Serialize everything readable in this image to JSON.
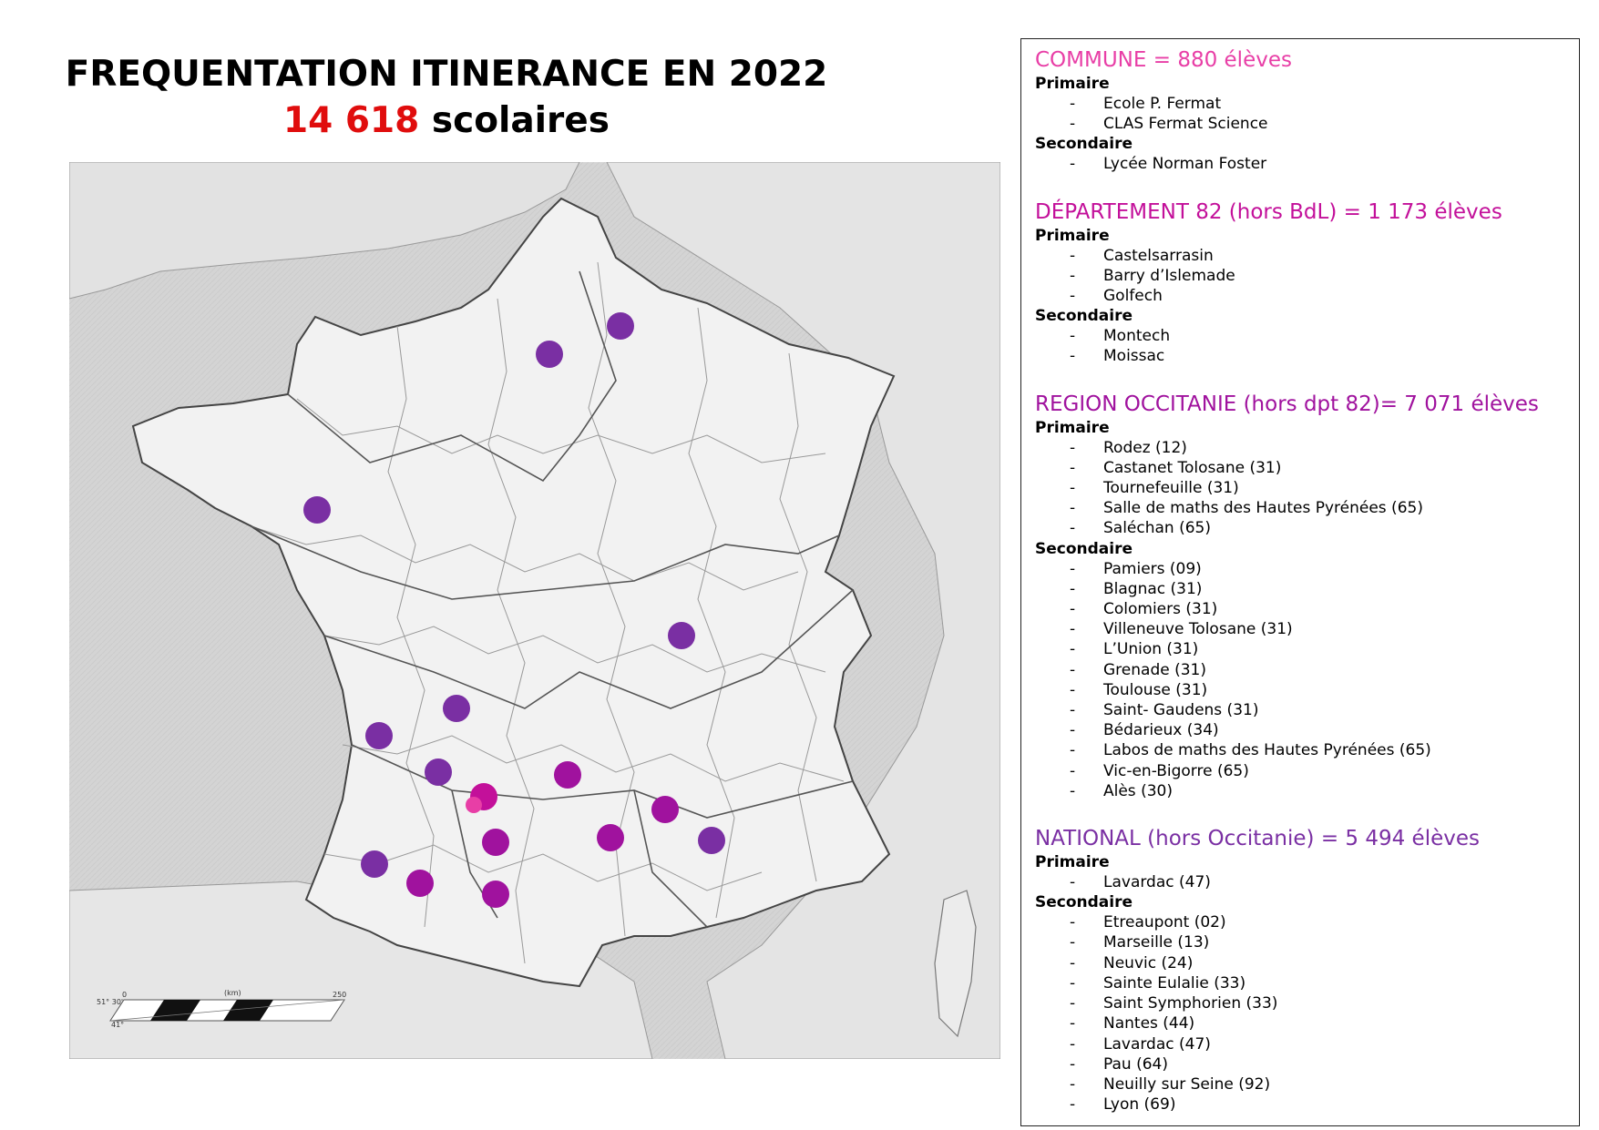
{
  "title": {
    "line1": "FREQUENTATION ITINERANCE EN 2022",
    "total_number": "14 618",
    "total_label": " scolaires"
  },
  "colors": {
    "title_number": "#e00d0d",
    "commune": "#e83ea6",
    "departement": "#c3109a",
    "region": "#a0129e",
    "national": "#7a2fa3",
    "map_land": "#f1f1f1",
    "map_sea": "#d6d6d6"
  },
  "map": {
    "scale": {
      "start": "0",
      "label": "(km)",
      "end": "250",
      "lat_top": "51° 30'",
      "lat_bottom": "41°"
    },
    "markers": [
      {
        "name": "paris",
        "category": "national"
      },
      {
        "name": "etreaupont",
        "category": "national"
      },
      {
        "name": "nantes",
        "category": "national"
      },
      {
        "name": "lyon",
        "category": "national"
      },
      {
        "name": "neuvic",
        "category": "national"
      },
      {
        "name": "saint-symphorien",
        "category": "national"
      },
      {
        "name": "lavardac",
        "category": "national"
      },
      {
        "name": "pau",
        "category": "national"
      },
      {
        "name": "marseille",
        "category": "national"
      },
      {
        "name": "departement-82",
        "category": "departement"
      },
      {
        "name": "montauban-commune",
        "category": "commune"
      },
      {
        "name": "rodez",
        "category": "region"
      },
      {
        "name": "toulouse",
        "category": "region"
      },
      {
        "name": "bedarieux",
        "category": "region"
      },
      {
        "name": "ales",
        "category": "region"
      },
      {
        "name": "vic-en-bigorre",
        "category": "region"
      },
      {
        "name": "saint-gaudens",
        "category": "region"
      }
    ]
  },
  "legend": {
    "sections": [
      {
        "id": "commune",
        "title": "COMMUNE = 880 élèves",
        "groups": [
          {
            "level": "Primaire",
            "items": [
              "Ecole P. Fermat",
              "CLAS Fermat Science"
            ]
          },
          {
            "level": "Secondaire",
            "items": [
              "Lycée Norman Foster"
            ]
          }
        ]
      },
      {
        "id": "departement",
        "title": "DÉPARTEMENT 82 (hors BdL) = 1 173 élèves",
        "groups": [
          {
            "level": "Primaire",
            "items": [
              "Castelsarrasin",
              "Barry d’Islemade",
              "Golfech"
            ]
          },
          {
            "level": "Secondaire",
            "items": [
              "Montech",
              "Moissac"
            ]
          }
        ]
      },
      {
        "id": "region",
        "title": "REGION OCCITANIE (hors dpt 82)= 7 071 élèves",
        "groups": [
          {
            "level": "Primaire",
            "items": [
              "Rodez (12)",
              "Castanet Tolosane (31)",
              "Tournefeuille (31)",
              "Salle de maths des Hautes Pyrénées (65)",
              "Saléchan (65)"
            ]
          },
          {
            "level": "Secondaire",
            "items": [
              "Pamiers (09)",
              "Blagnac (31)",
              "Colomiers (31)",
              "Villeneuve Tolosane (31)",
              "L’Union (31)",
              "Grenade (31)",
              "Toulouse (31)",
              "Saint- Gaudens (31)",
              "Bédarieux (34)",
              "Labos de maths des Hautes Pyrénées (65)",
              "Vic-en-Bigorre (65)",
              "Alès (30)"
            ]
          }
        ]
      },
      {
        "id": "national",
        "title": "NATIONAL (hors Occitanie) = 5 494 élèves",
        "groups": [
          {
            "level": "Primaire",
            "items": [
              "Lavardac (47)"
            ]
          },
          {
            "level": "Secondaire",
            "items": [
              "Etreaupont (02)",
              "Marseille (13)",
              "Neuvic (24)",
              "Sainte Eulalie (33)",
              "Saint Symphorien (33)",
              "Nantes (44)",
              "Lavardac (47)",
              "Pau (64)",
              "Neuilly sur Seine (92)",
              "Lyon (69)"
            ]
          }
        ]
      }
    ]
  }
}
